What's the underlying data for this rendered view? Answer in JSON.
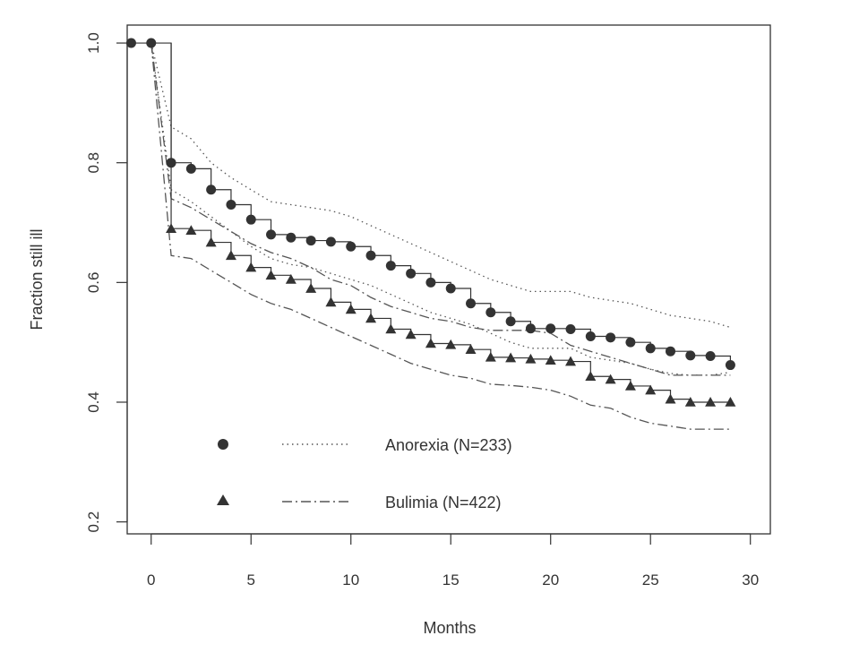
{
  "chart_data": {
    "type": "line",
    "xlabel": "Months",
    "ylabel": "Fraction still ill",
    "xlim": [
      -1.2,
      31
    ],
    "ylim": [
      0.18,
      1.03
    ],
    "xticks": [
      0,
      5,
      10,
      15,
      20,
      25,
      30
    ],
    "yticks": [
      0.2,
      0.4,
      0.6,
      0.8,
      1.0
    ],
    "xtick_labels": [
      "0",
      "5",
      "10",
      "15",
      "20",
      "25",
      "30"
    ],
    "ytick_labels": [
      "0.2",
      "0.4",
      "0.6",
      "0.8",
      "1.0"
    ],
    "grid": false,
    "legend_position": "bottom-left",
    "series": [
      {
        "name": "Anorexia (N=233)",
        "marker": "circle",
        "style": "step",
        "x": [
          -1,
          0,
          1,
          2,
          3,
          4,
          5,
          6,
          7,
          8,
          9,
          10,
          11,
          12,
          13,
          14,
          15,
          16,
          17,
          18,
          19,
          20,
          21,
          22,
          23,
          24,
          25,
          26,
          27,
          28,
          29
        ],
        "y": [
          1.0,
          1.0,
          0.8,
          0.79,
          0.755,
          0.73,
          0.705,
          0.68,
          0.675,
          0.67,
          0.668,
          0.66,
          0.645,
          0.628,
          0.615,
          0.6,
          0.59,
          0.565,
          0.55,
          0.535,
          0.523,
          0.523,
          0.522,
          0.51,
          0.508,
          0.5,
          0.49,
          0.485,
          0.478,
          0.477,
          0.462
        ],
        "ci_style": "dotted",
        "ci_upper": {
          "x": [
            0,
            1,
            2,
            3,
            4,
            5,
            6,
            7,
            8,
            9,
            10,
            11,
            12,
            13,
            14,
            15,
            16,
            17,
            18,
            19,
            20,
            21,
            22,
            23,
            24,
            25,
            26,
            27,
            28,
            29
          ],
          "y": [
            1.0,
            0.86,
            0.84,
            0.8,
            0.775,
            0.755,
            0.735,
            0.73,
            0.725,
            0.72,
            0.71,
            0.695,
            0.68,
            0.665,
            0.65,
            0.635,
            0.62,
            0.605,
            0.595,
            0.585,
            0.585,
            0.585,
            0.575,
            0.57,
            0.565,
            0.555,
            0.545,
            0.54,
            0.535,
            0.525
          ]
        },
        "ci_lower": {
          "x": [
            0,
            1,
            2,
            3,
            4,
            5,
            6,
            7,
            8,
            9,
            10,
            11,
            12,
            13,
            14,
            15,
            16,
            17,
            18,
            19,
            20,
            21,
            22,
            23,
            24,
            25,
            26,
            27,
            28,
            29
          ],
          "y": [
            1.0,
            0.755,
            0.735,
            0.71,
            0.685,
            0.66,
            0.64,
            0.63,
            0.625,
            0.615,
            0.605,
            0.595,
            0.58,
            0.565,
            0.55,
            0.54,
            0.53,
            0.515,
            0.5,
            0.49,
            0.49,
            0.49,
            0.475,
            0.47,
            0.465,
            0.455,
            0.448,
            0.445,
            0.445,
            0.45
          ]
        }
      },
      {
        "name": "Bulimia (N=422)",
        "marker": "triangle",
        "style": "step",
        "x": [
          1,
          2,
          3,
          4,
          5,
          6,
          7,
          8,
          9,
          10,
          11,
          12,
          13,
          14,
          15,
          16,
          17,
          18,
          19,
          20,
          21,
          22,
          23,
          24,
          25,
          26,
          27,
          28,
          29
        ],
        "y": [
          0.69,
          0.687,
          0.667,
          0.645,
          0.625,
          0.612,
          0.605,
          0.59,
          0.567,
          0.555,
          0.54,
          0.522,
          0.513,
          0.498,
          0.496,
          0.488,
          0.475,
          0.474,
          0.472,
          0.47,
          0.468,
          0.443,
          0.438,
          0.427,
          0.42,
          0.405,
          0.4,
          0.4,
          0.4
        ],
        "ci_style": "dashdot",
        "ci_upper": {
          "x": [
            0,
            1,
            2,
            3,
            4,
            5,
            6,
            7,
            8,
            9,
            10,
            11,
            12,
            13,
            14,
            15,
            16,
            17,
            18,
            19,
            20,
            21,
            22,
            23,
            24,
            25,
            26,
            27,
            28,
            29
          ],
          "y": [
            1.0,
            0.74,
            0.725,
            0.705,
            0.685,
            0.665,
            0.65,
            0.64,
            0.625,
            0.605,
            0.595,
            0.575,
            0.56,
            0.55,
            0.54,
            0.535,
            0.525,
            0.52,
            0.52,
            0.52,
            0.515,
            0.495,
            0.485,
            0.475,
            0.465,
            0.455,
            0.445,
            0.445,
            0.445,
            0.445
          ]
        },
        "ci_lower": {
          "x": [
            0,
            1,
            2,
            3,
            4,
            5,
            6,
            7,
            8,
            9,
            10,
            11,
            12,
            13,
            14,
            15,
            16,
            17,
            18,
            19,
            20,
            21,
            22,
            23,
            24,
            25,
            26,
            27,
            28,
            29
          ],
          "y": [
            1.0,
            0.645,
            0.64,
            0.62,
            0.6,
            0.58,
            0.565,
            0.555,
            0.54,
            0.525,
            0.51,
            0.495,
            0.48,
            0.465,
            0.455,
            0.445,
            0.44,
            0.43,
            0.428,
            0.425,
            0.42,
            0.41,
            0.395,
            0.39,
            0.375,
            0.365,
            0.36,
            0.355,
            0.355,
            0.355
          ]
        }
      }
    ]
  }
}
